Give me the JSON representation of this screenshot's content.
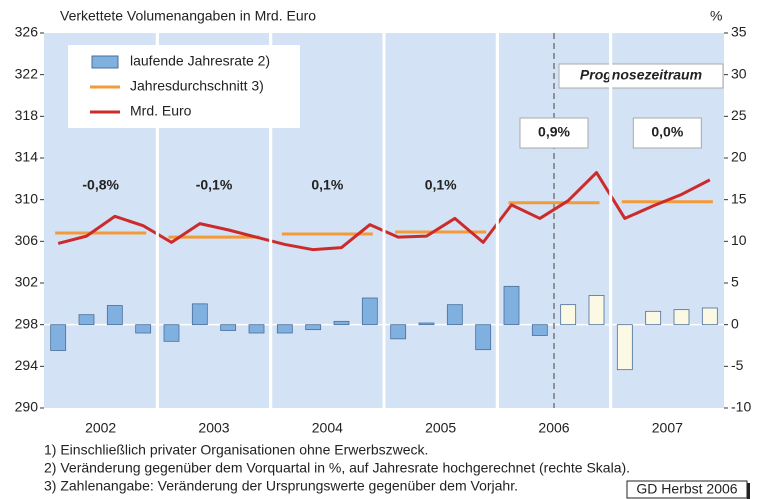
{
  "chart_data": {
    "type": "bar_line",
    "title": "Verkettete Volumenangaben in Mrd. Euro",
    "y2_unit": "%",
    "categories": [
      "2002",
      "2003",
      "2004",
      "2005",
      "2006",
      "2007"
    ],
    "series": [
      {
        "name": "laufende Jahresrate 2)",
        "kind": "bar",
        "axis": "y2",
        "color": "#7fb0e0",
        "forecast_color": "#fbf9e3",
        "values": [
          [
            -3.1,
            1.2,
            2.3,
            -1.0
          ],
          [
            -2.0,
            2.5,
            -0.7,
            -1.0
          ],
          [
            -1.0,
            -0.6,
            0.4,
            3.2
          ],
          [
            -1.7,
            0.2,
            2.4,
            -3.0
          ],
          [
            4.6,
            -1.3,
            2.4,
            3.5
          ],
          [
            -5.4,
            1.6,
            1.8,
            2.0
          ]
        ]
      },
      {
        "name": "Jahresdurchschnitt 3)",
        "kind": "average",
        "color": "#f39a3a",
        "values": [
          306.8,
          306.4,
          306.7,
          306.9,
          309.7,
          309.8
        ]
      },
      {
        "name": "Mrd. Euro",
        "kind": "line",
        "color": "#cc2b2b",
        "values": [
          [
            305.8,
            306.5,
            308.4,
            307.5
          ],
          [
            305.9,
            307.7,
            307.1,
            306.4
          ],
          [
            305.7,
            305.2,
            305.4,
            307.6
          ],
          [
            306.4,
            306.5,
            308.2,
            305.9
          ],
          [
            309.5,
            308.2,
            309.9,
            312.6
          ],
          [
            308.2,
            309.4,
            310.5,
            311.9
          ]
        ]
      }
    ],
    "annual_rates": {
      "values": [
        -0.8,
        -0.1,
        0.1,
        0.1,
        0.9,
        0.0
      ],
      "value_labels": [
        "-0,8%",
        "-0,1%",
        "0,1%",
        "0,1%",
        "0,9%",
        "0,0%"
      ],
      "color": "#f26a2e"
    },
    "forecast_start": [
      4,
      2
    ],
    "forecast_label": "Prognosezeitraum",
    "ylim": [
      290,
      326
    ],
    "yticks": [
      290,
      294,
      298,
      302,
      306,
      310,
      314,
      318,
      322,
      326
    ],
    "y2lim": [
      -10,
      35
    ],
    "y2ticks": [
      -10,
      -5,
      0,
      5,
      10,
      15,
      20,
      25,
      30,
      35
    ],
    "legend": "upper left",
    "footnotes": [
      "1) Einschließlich privater Organisationen ohne Erwerbszweck.",
      "2) Veränderung gegenüber dem Vorquartal in %, auf Jahresrate hochgerechnet (rechte Skala).",
      "3) Zahlenangabe: Veränderung der Ursprungswerte gegenüber dem Vorjahr."
    ],
    "source": "GD Herbst 2006"
  }
}
